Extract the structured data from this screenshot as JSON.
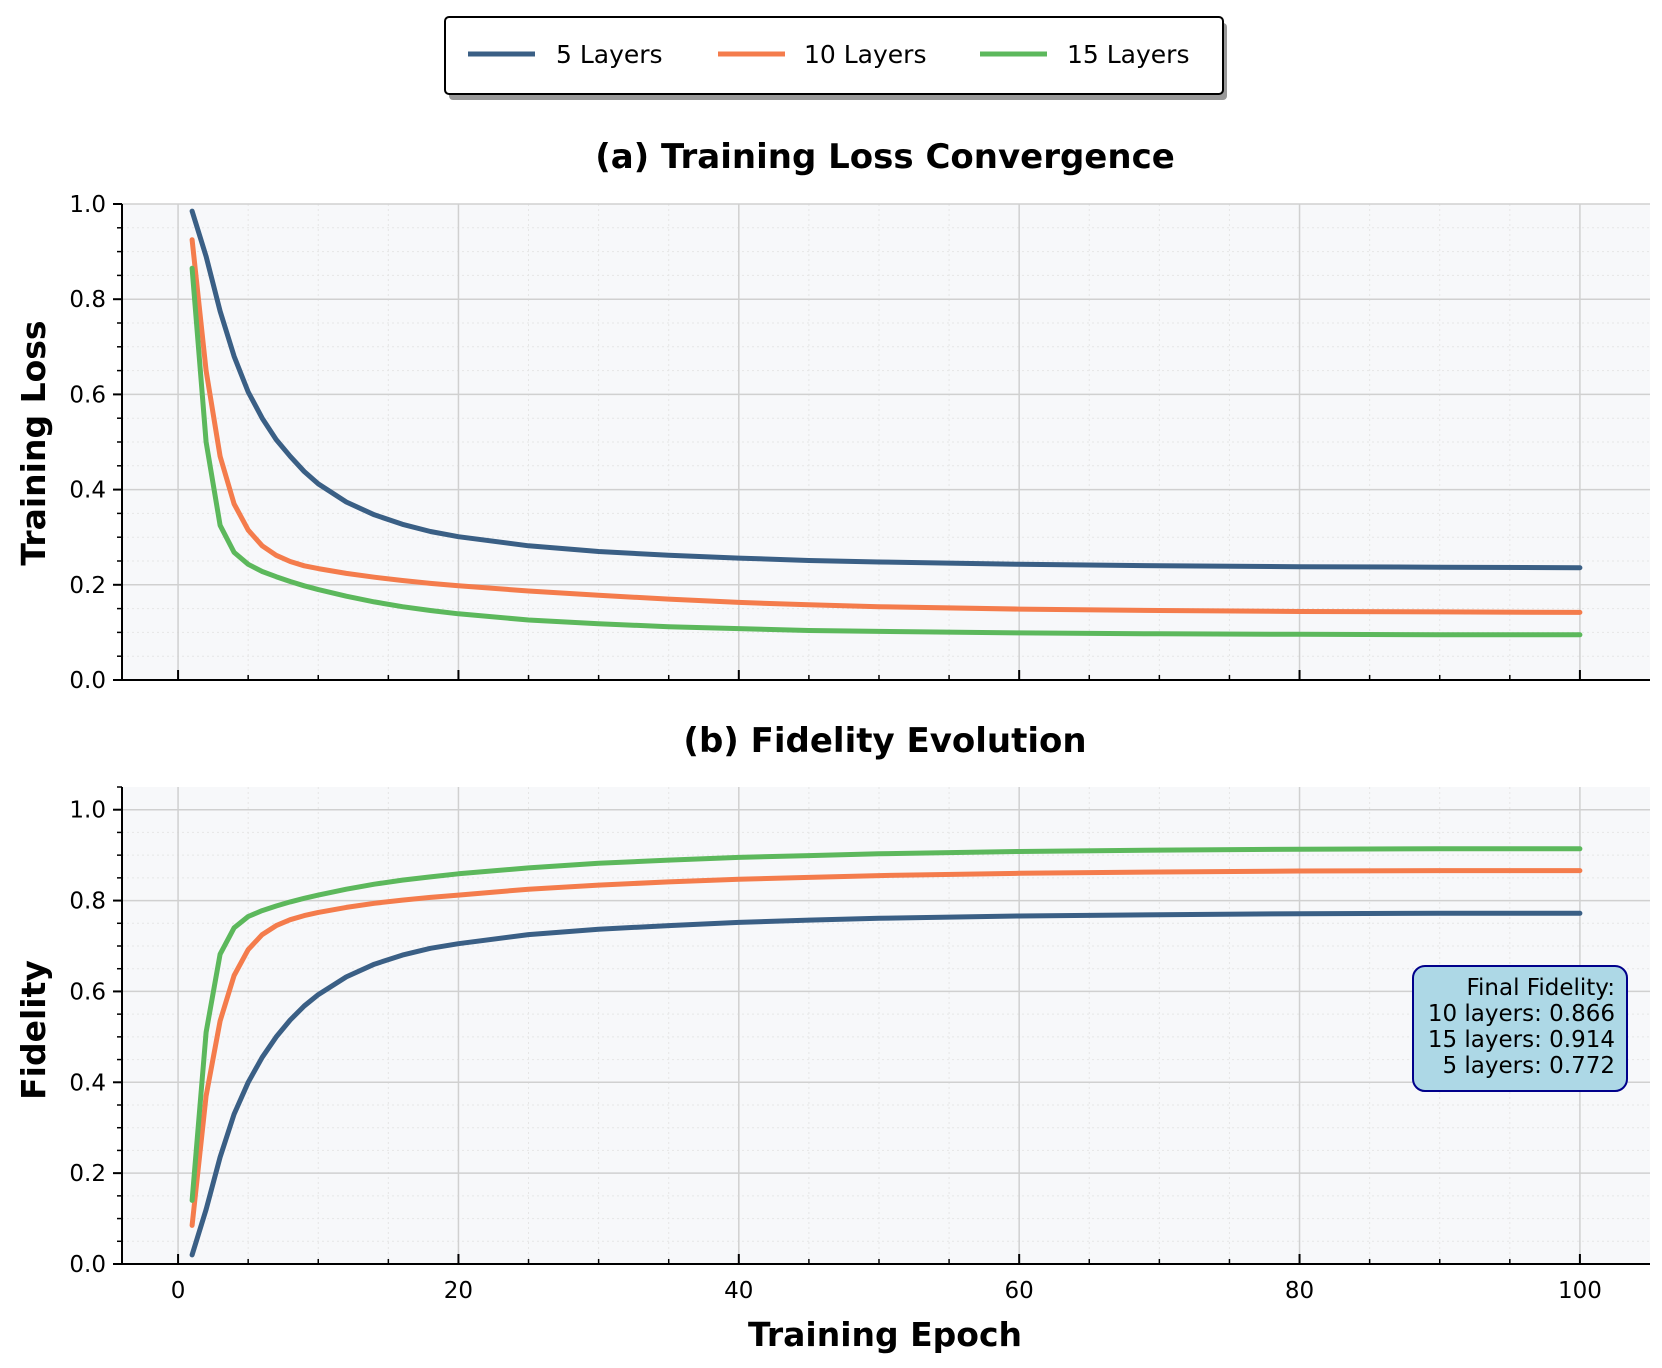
{
  "chart_data": [
    {
      "type": "line",
      "title": "(a) Training Loss Convergence",
      "xlabel": "",
      "ylabel": "Training Loss",
      "xlim": [
        -4,
        105
      ],
      "ylim": [
        0,
        1.0
      ],
      "yticks": [
        "0.0",
        "0.2",
        "0.4",
        "0.6",
        "0.8",
        "1.0"
      ],
      "grid": true,
      "x": [
        1,
        2,
        3,
        4,
        5,
        6,
        7,
        8,
        9,
        10,
        12,
        14,
        16,
        18,
        20,
        25,
        30,
        35,
        40,
        45,
        50,
        60,
        70,
        80,
        90,
        100
      ],
      "series": [
        {
          "name": "5 Layers",
          "color": "#3a5f85",
          "values": [
            0.985,
            0.89,
            0.775,
            0.68,
            0.605,
            0.55,
            0.505,
            0.47,
            0.438,
            0.412,
            0.374,
            0.347,
            0.327,
            0.312,
            0.301,
            0.282,
            0.27,
            0.262,
            0.256,
            0.251,
            0.248,
            0.243,
            0.24,
            0.238,
            0.237,
            0.236
          ]
        },
        {
          "name": "10 Layers",
          "color": "#f47c4c",
          "values": [
            0.925,
            0.65,
            0.47,
            0.37,
            0.315,
            0.282,
            0.262,
            0.249,
            0.24,
            0.234,
            0.224,
            0.216,
            0.209,
            0.203,
            0.198,
            0.187,
            0.178,
            0.17,
            0.163,
            0.158,
            0.154,
            0.149,
            0.146,
            0.144,
            0.143,
            0.142
          ]
        },
        {
          "name": "15 Layers",
          "color": "#5cb85c",
          "values": [
            0.865,
            0.5,
            0.325,
            0.268,
            0.243,
            0.228,
            0.217,
            0.207,
            0.198,
            0.19,
            0.176,
            0.164,
            0.154,
            0.146,
            0.139,
            0.126,
            0.118,
            0.112,
            0.108,
            0.104,
            0.102,
            0.099,
            0.097,
            0.096,
            0.095,
            0.095
          ]
        }
      ]
    },
    {
      "type": "line",
      "title": "(b) Fidelity Evolution",
      "xlabel": "Training Epoch",
      "ylabel": "Fidelity",
      "xlim": [
        -4,
        105
      ],
      "ylim": [
        0,
        1.05
      ],
      "xticks": [
        "0",
        "20",
        "40",
        "60",
        "80",
        "100"
      ],
      "yticks": [
        "0.0",
        "0.2",
        "0.4",
        "0.6",
        "0.8",
        "1.0"
      ],
      "grid": true,
      "x": [
        1,
        2,
        3,
        4,
        5,
        6,
        7,
        8,
        9,
        10,
        12,
        14,
        16,
        18,
        20,
        25,
        30,
        35,
        40,
        45,
        50,
        60,
        70,
        80,
        90,
        100
      ],
      "series": [
        {
          "name": "5 Layers",
          "color": "#3a5f85",
          "values": [
            0.02,
            0.12,
            0.235,
            0.33,
            0.4,
            0.455,
            0.5,
            0.537,
            0.568,
            0.593,
            0.632,
            0.66,
            0.68,
            0.695,
            0.705,
            0.725,
            0.737,
            0.745,
            0.752,
            0.757,
            0.761,
            0.766,
            0.769,
            0.771,
            0.772,
            0.772
          ]
        },
        {
          "name": "10 Layers",
          "color": "#f47c4c",
          "values": [
            0.085,
            0.37,
            0.535,
            0.635,
            0.692,
            0.725,
            0.745,
            0.758,
            0.767,
            0.774,
            0.785,
            0.794,
            0.801,
            0.807,
            0.812,
            0.825,
            0.834,
            0.841,
            0.847,
            0.851,
            0.855,
            0.86,
            0.863,
            0.865,
            0.866,
            0.866
          ]
        },
        {
          "name": "15 Layers",
          "color": "#5cb85c",
          "values": [
            0.14,
            0.51,
            0.682,
            0.74,
            0.765,
            0.778,
            0.788,
            0.797,
            0.805,
            0.812,
            0.825,
            0.836,
            0.845,
            0.852,
            0.859,
            0.872,
            0.882,
            0.889,
            0.895,
            0.899,
            0.903,
            0.908,
            0.911,
            0.913,
            0.914,
            0.914
          ]
        }
      ],
      "annotation": {
        "lines": [
          "Final Fidelity:",
          "10 layers: 0.866",
          "15 layers: 0.914",
          "5 layers: 0.772"
        ],
        "background": "#add8e6",
        "border": "#00008b"
      }
    }
  ],
  "legend": {
    "placement": "top-center",
    "items": [
      "5 Layers",
      "10 Layers",
      "15 Layers"
    ]
  }
}
